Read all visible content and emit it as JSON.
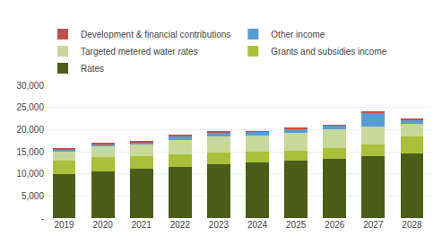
{
  "chart_data": {
    "type": "bar",
    "stacked": true,
    "categories": [
      "2019",
      "2020",
      "2021",
      "2022",
      "2023",
      "2024",
      "2025",
      "2026",
      "2027",
      "2028"
    ],
    "series": [
      {
        "name": "Rates",
        "color": "#4a5e1a",
        "values": [
          10000,
          10600,
          11100,
          11600,
          12200,
          12500,
          12900,
          13300,
          13900,
          14500
        ]
      },
      {
        "name": "Grants and subsidies income",
        "color": "#aabf3a",
        "values": [
          3000,
          3200,
          2800,
          2700,
          2500,
          2400,
          2400,
          2500,
          2700,
          4000
        ]
      },
      {
        "name": "Targeted metered water rates",
        "color": "#c8d89a",
        "values": [
          2200,
          2400,
          2800,
          3400,
          3800,
          3700,
          4000,
          4200,
          4000,
          2700
        ]
      },
      {
        "name": "Other income",
        "color": "#5b9bd5",
        "values": [
          400,
          500,
          500,
          900,
          900,
          900,
          900,
          900,
          3200,
          1000
        ]
      },
      {
        "name": "Development & financial contributions",
        "color": "#c0504d",
        "values": [
          50,
          400,
          100,
          100,
          100,
          100,
          100,
          100,
          300,
          100
        ]
      }
    ],
    "ylim": [
      0,
      30000
    ],
    "yticks": [
      {
        "value": 0,
        "label": "-"
      },
      {
        "value": 5000,
        "label": "5,000"
      },
      {
        "value": 10000,
        "label": "10,000"
      },
      {
        "value": 15000,
        "label": "15,000"
      },
      {
        "value": 20000,
        "label": "20,000"
      },
      {
        "value": 25000,
        "label": "25,000"
      },
      {
        "value": 30000,
        "label": "30,000"
      }
    ],
    "grid": true,
    "legend": "top"
  }
}
